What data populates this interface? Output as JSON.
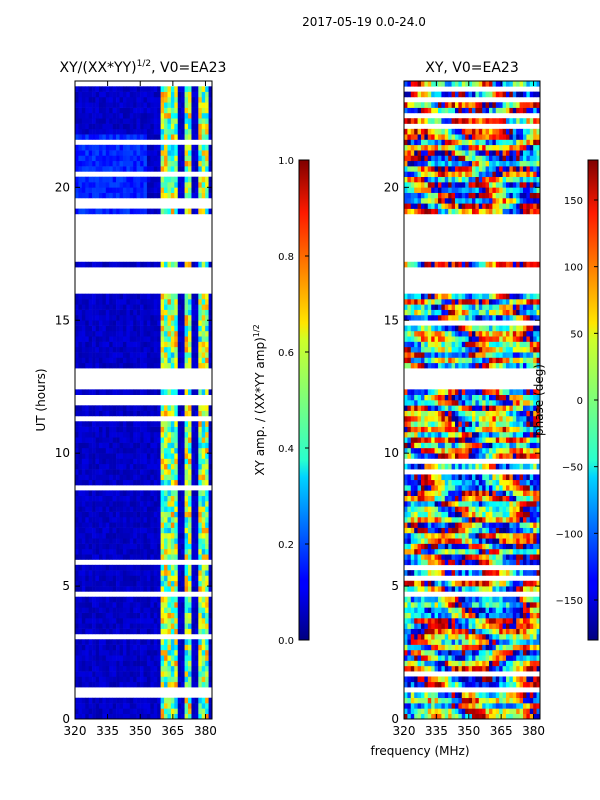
{
  "figure": {
    "suptitle": "2017-05-19 0.0-24.0",
    "shared_xlabel": "frequency (MHz)"
  },
  "chart_data": [
    {
      "type": "heatmap",
      "title_main": "XY/(XX*YY)",
      "title_sup": "1/2",
      "title_tail": ", V0=EA23",
      "xlabel": "",
      "ylabel": "UT (hours)",
      "xlim": [
        320,
        383
      ],
      "ylim": [
        0,
        24
      ],
      "xticks": [
        320,
        335,
        350,
        365,
        380
      ],
      "yticks": [
        0,
        5,
        10,
        15,
        20
      ],
      "colormap": "jet",
      "colorbar": {
        "label_main": "XY amp. / (XX*YY amp)",
        "label_sup": "1/2",
        "range": [
          0.0,
          1.0
        ],
        "ticks": [
          "0.0",
          "0.2",
          "0.4",
          "0.6",
          "0.8",
          "1.0"
        ]
      },
      "blank_ut_ranges": [
        [
          0.95,
          1.15
        ],
        [
          4.6,
          4.75
        ],
        [
          12.35,
          13.3
        ],
        [
          16.0,
          16.95
        ],
        [
          17.25,
          19.0
        ]
      ],
      "bright_band_mhz": [
        [
          359,
          368
        ],
        [
          370,
          374
        ],
        [
          376,
          381
        ]
      ]
    },
    {
      "type": "heatmap",
      "title": "XY, V0=EA23",
      "xlabel": "frequency (MHz)",
      "ylabel": "",
      "xlim": [
        320,
        383
      ],
      "ylim": [
        0,
        24
      ],
      "xticks": [
        320,
        335,
        350,
        365,
        380
      ],
      "yticks": [
        0,
        5,
        10,
        15,
        20
      ],
      "colormap": "jet",
      "colorbar": {
        "label": "phase (deg)",
        "range": [
          -180,
          180
        ],
        "ticks": [
          "−150",
          "−100",
          "−50",
          "0",
          "50",
          "100",
          "150"
        ],
        "tick_values": [
          -150,
          -100,
          -50,
          0,
          50,
          100,
          150
        ]
      },
      "blank_ut_ranges": [
        [
          0.95,
          1.15
        ],
        [
          4.6,
          4.75
        ],
        [
          12.35,
          13.3
        ],
        [
          16.0,
          16.95
        ],
        [
          17.25,
          19.0
        ]
      ]
    }
  ]
}
